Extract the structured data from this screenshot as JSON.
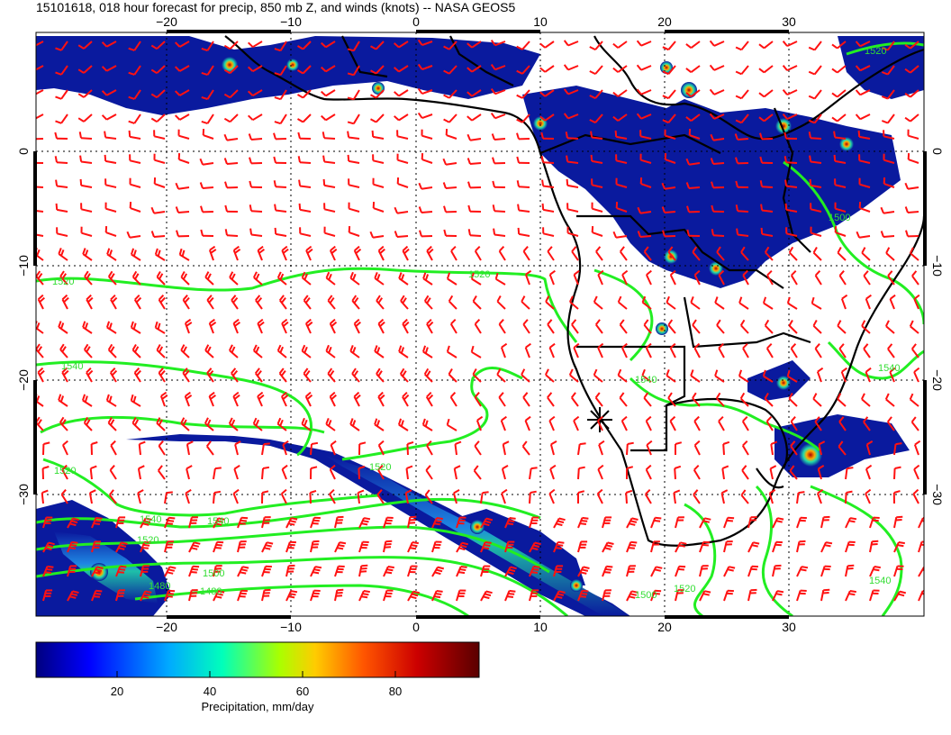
{
  "header": {
    "title": "15101618, 018 hour forecast for precip, 850 mb Z, and winds (knots) -- NASA GEOS5"
  },
  "map": {
    "lon_ticks": [
      "−20",
      "−10",
      "0",
      "10",
      "20",
      "30"
    ],
    "lat_ticks": [
      "0",
      "−10",
      "−20",
      "−30"
    ],
    "lon_range": [
      -31,
      41
    ],
    "lat_range": [
      -40,
      9
    ],
    "grid": "dotted",
    "overlays": [
      "precipitation shading",
      "850 mb height contours",
      "wind barbs",
      "coastlines and borders"
    ],
    "contour_labels": [
      "1520",
      "1520",
      "1540",
      "1540",
      "1520",
      "1520",
      "1540",
      "1540",
      "1520",
      "1500",
      "1480",
      "1480",
      "1500",
      "1520",
      "1540",
      "1540",
      "1520",
      "1500"
    ],
    "colors": {
      "wind_barbs": "#ff1111",
      "contours": "#22ee22",
      "coastlines": "#000000",
      "precip_low": "#0a1a9e",
      "precip_high": "#7a0000"
    }
  },
  "colorbar": {
    "ticks": [
      "20",
      "40",
      "60",
      "80"
    ],
    "range": [
      0,
      100
    ],
    "label": "Precipitation, mm/day",
    "colors": [
      "#00007f",
      "#0000ff",
      "#00aaff",
      "#00ffbb",
      "#aaff00",
      "#ffcc00",
      "#ff5500",
      "#cc0000",
      "#5a0000"
    ]
  }
}
